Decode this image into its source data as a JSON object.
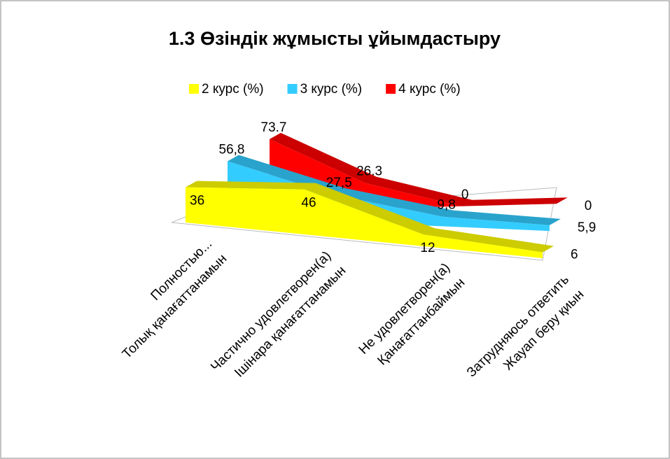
{
  "chart_data": {
    "type": "line",
    "title": "1.3 Өзіндік жұмысты ұйымдастыру",
    "categories": [
      [
        "Полностью...",
        "Толық қанағаттанамын"
      ],
      [
        "Частично удовлетворен(а)",
        "Ішінара қанағаттанамын"
      ],
      [
        "Не удовлетворен(а)",
        "Қанағаттанбаймын"
      ],
      [
        "Затрудняюсь ответить",
        "Жауап беру қиын"
      ]
    ],
    "series": [
      {
        "name": "2 курс (%)",
        "color": "#ffff00",
        "values": [
          36,
          46,
          12,
          6
        ]
      },
      {
        "name": "3 курс (%)",
        "color": "#33ccff",
        "values": [
          56.8,
          27.5,
          9.8,
          5.9
        ],
        "value_labels": [
          "56,8",
          "27,5",
          "9,8",
          "5,9"
        ]
      },
      {
        "name": "4 курс (%)",
        "color": "#ff0000",
        "values": [
          73.7,
          26.3,
          0,
          0
        ]
      }
    ],
    "legend": "top"
  }
}
